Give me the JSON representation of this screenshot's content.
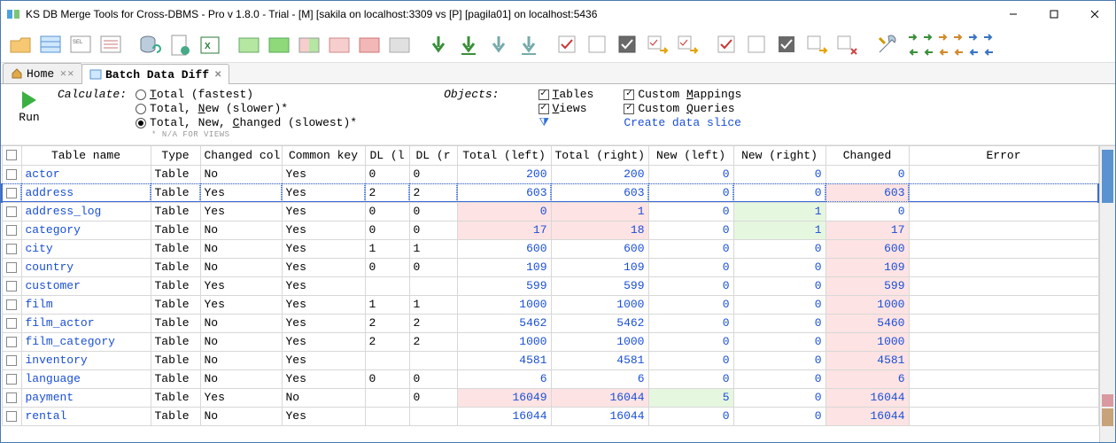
{
  "window": {
    "title": "KS DB Merge Tools for Cross-DBMS - Pro v 1.8.0 - Trial - [M] [sakila on localhost:3309 vs [P] [pagila01] on localhost:5436"
  },
  "tabs": {
    "home": "Home",
    "batch": "Batch Data Diff"
  },
  "runbar": {
    "run": "Run",
    "calculate": "Calculate:",
    "opt_total": "Total (fastest)",
    "opt_total_new": "Total, New (slower)*",
    "opt_total_new_changed": "Total, New, Changed (slowest)*",
    "na_note": "* N/A FOR VIEWS",
    "objects": "Objects:",
    "obj_tables": "Tables",
    "obj_views": "Views",
    "obj_cmap": "Custom Mappings",
    "obj_cquery": "Custom Queries",
    "create_slice": "Create data slice"
  },
  "grid": {
    "columns": [
      "",
      "Table name",
      "Type",
      "Changed col",
      "Common key",
      "DL (l",
      "DL (r",
      "Total (left)",
      "Total (right)",
      "New (left)",
      "New (right)",
      "Changed",
      "Error"
    ],
    "rows": [
      {
        "name": "actor",
        "type": "Table",
        "chg": "No",
        "ck": "Yes",
        "dll": "0",
        "dlr": "0",
        "tl": "200",
        "tr": "200",
        "nl": "0",
        "nr": "0",
        "cg": "0",
        "tl_bg": "",
        "tr_bg": "",
        "nl_bg": "",
        "nr_bg": "",
        "cg_bg": "",
        "sel": false
      },
      {
        "name": "address",
        "type": "Table",
        "chg": "Yes",
        "ck": "Yes",
        "dll": "2",
        "dlr": "2",
        "tl": "603",
        "tr": "603",
        "nl": "0",
        "nr": "0",
        "cg": "603",
        "tl_bg": "",
        "tr_bg": "",
        "nl_bg": "",
        "nr_bg": "",
        "cg_bg": "pinkbg",
        "sel": true
      },
      {
        "name": "address_log",
        "type": "Table",
        "chg": "Yes",
        "ck": "Yes",
        "dll": "0",
        "dlr": "0",
        "tl": "0",
        "tr": "1",
        "nl": "0",
        "nr": "1",
        "cg": "0",
        "tl_bg": "pinkbg",
        "tr_bg": "pinkbg",
        "nl_bg": "",
        "nr_bg": "greenbg",
        "cg_bg": "",
        "sel": false
      },
      {
        "name": "category",
        "type": "Table",
        "chg": "No",
        "ck": "Yes",
        "dll": "0",
        "dlr": "0",
        "tl": "17",
        "tr": "18",
        "nl": "0",
        "nr": "1",
        "cg": "17",
        "tl_bg": "pinkbg",
        "tr_bg": "pinkbg",
        "nl_bg": "",
        "nr_bg": "greenbg",
        "cg_bg": "pinkbg",
        "sel": false
      },
      {
        "name": "city",
        "type": "Table",
        "chg": "No",
        "ck": "Yes",
        "dll": "1",
        "dlr": "1",
        "tl": "600",
        "tr": "600",
        "nl": "0",
        "nr": "0",
        "cg": "600",
        "tl_bg": "",
        "tr_bg": "",
        "nl_bg": "",
        "nr_bg": "",
        "cg_bg": "pinkbg",
        "sel": false
      },
      {
        "name": "country",
        "type": "Table",
        "chg": "No",
        "ck": "Yes",
        "dll": "0",
        "dlr": "0",
        "tl": "109",
        "tr": "109",
        "nl": "0",
        "nr": "0",
        "cg": "109",
        "tl_bg": "",
        "tr_bg": "",
        "nl_bg": "",
        "nr_bg": "",
        "cg_bg": "pinkbg",
        "sel": false
      },
      {
        "name": "customer",
        "type": "Table",
        "chg": "Yes",
        "ck": "Yes",
        "dll": "",
        "dlr": "",
        "tl": "599",
        "tr": "599",
        "nl": "0",
        "nr": "0",
        "cg": "599",
        "tl_bg": "",
        "tr_bg": "",
        "nl_bg": "",
        "nr_bg": "",
        "cg_bg": "pinkbg",
        "sel": false
      },
      {
        "name": "film",
        "type": "Table",
        "chg": "Yes",
        "ck": "Yes",
        "dll": "1",
        "dlr": "1",
        "tl": "1000",
        "tr": "1000",
        "nl": "0",
        "nr": "0",
        "cg": "1000",
        "tl_bg": "",
        "tr_bg": "",
        "nl_bg": "",
        "nr_bg": "",
        "cg_bg": "pinkbg",
        "sel": false
      },
      {
        "name": "film_actor",
        "type": "Table",
        "chg": "No",
        "ck": "Yes",
        "dll": "2",
        "dlr": "2",
        "tl": "5462",
        "tr": "5462",
        "nl": "0",
        "nr": "0",
        "cg": "5460",
        "tl_bg": "",
        "tr_bg": "",
        "nl_bg": "",
        "nr_bg": "",
        "cg_bg": "pinkbg",
        "sel": false
      },
      {
        "name": "film_category",
        "type": "Table",
        "chg": "No",
        "ck": "Yes",
        "dll": "2",
        "dlr": "2",
        "tl": "1000",
        "tr": "1000",
        "nl": "0",
        "nr": "0",
        "cg": "1000",
        "tl_bg": "",
        "tr_bg": "",
        "nl_bg": "",
        "nr_bg": "",
        "cg_bg": "pinkbg",
        "sel": false
      },
      {
        "name": "inventory",
        "type": "Table",
        "chg": "No",
        "ck": "Yes",
        "dll": "",
        "dlr": "",
        "tl": "4581",
        "tr": "4581",
        "nl": "0",
        "nr": "0",
        "cg": "4581",
        "tl_bg": "",
        "tr_bg": "",
        "nl_bg": "",
        "nr_bg": "",
        "cg_bg": "pinkbg",
        "sel": false
      },
      {
        "name": "language",
        "type": "Table",
        "chg": "No",
        "ck": "Yes",
        "dll": "0",
        "dlr": "0",
        "tl": "6",
        "tr": "6",
        "nl": "0",
        "nr": "0",
        "cg": "6",
        "tl_bg": "",
        "tr_bg": "",
        "nl_bg": "",
        "nr_bg": "",
        "cg_bg": "pinkbg",
        "sel": false
      },
      {
        "name": "payment",
        "type": "Table",
        "chg": "Yes",
        "ck": "No",
        "dll": "",
        "dlr": "0",
        "tl": "16049",
        "tr": "16044",
        "nl": "5",
        "nr": "0",
        "cg": "16044",
        "tl_bg": "pinkbg",
        "tr_bg": "pinkbg",
        "nl_bg": "greenbg",
        "nr_bg": "",
        "cg_bg": "pinkbg",
        "sel": false
      },
      {
        "name": "rental",
        "type": "Table",
        "chg": "No",
        "ck": "Yes",
        "dll": "",
        "dlr": "",
        "tl": "16044",
        "tr": "16044",
        "nl": "0",
        "nr": "0",
        "cg": "16044",
        "tl_bg": "",
        "tr_bg": "",
        "nl_bg": "",
        "nr_bg": "",
        "cg_bg": "pinkbg",
        "sel": false
      }
    ]
  },
  "colors": {
    "link": "#1a4fd6",
    "pink": "#fde3e3",
    "green": "#e6f7e0",
    "accent": "#4a7ab0"
  }
}
